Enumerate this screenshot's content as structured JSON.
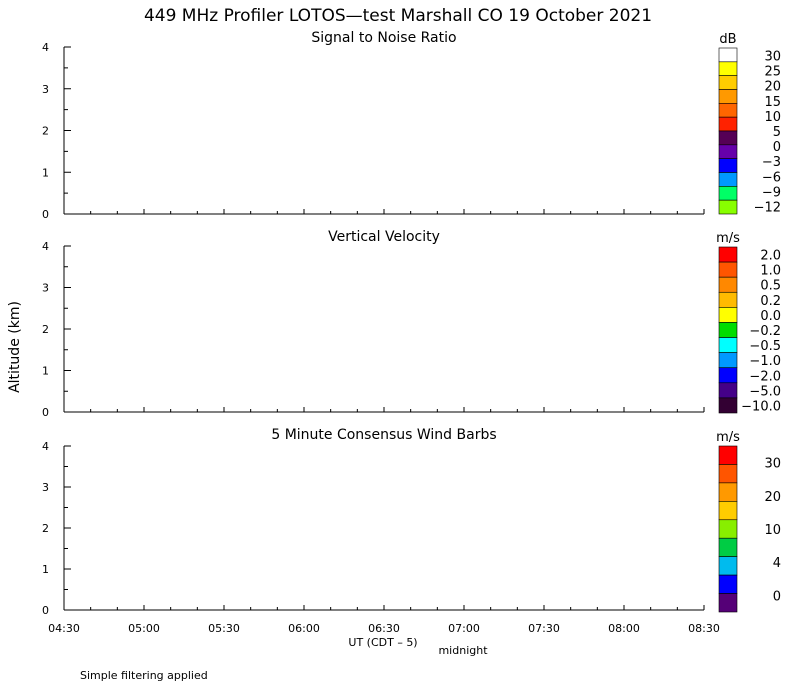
{
  "figure": {
    "title": "449 MHz Profiler LOTOS—test Marshall CO 19 October 2021",
    "ylabel": "Altitude (km)",
    "xlabel": "UT  (CDT – 5)",
    "midnight_label": "midnight",
    "footnote": "Simple filtering applied",
    "x_ticks": [
      "04:30",
      "05:00",
      "05:30",
      "06:00",
      "06:30",
      "07:00",
      "07:30",
      "08:00",
      "08:30"
    ]
  },
  "chart_data": [
    {
      "type": "heatmap",
      "title": "Signal to Noise Ratio",
      "ylabel": "Altitude (km)",
      "xlim": [
        "04:30",
        "08:30"
      ],
      "ylim": [
        0,
        4
      ],
      "y_ticks": [
        "0",
        "1",
        "2",
        "3",
        "4"
      ],
      "values": [],
      "colorbar": {
        "unit": "dB",
        "colors": [
          "#ffffff",
          "#ffff00",
          "#ffcc00",
          "#ff9900",
          "#ff6600",
          "#ff2200",
          "#550055",
          "#6600aa",
          "#0000ff",
          "#0099ff",
          "#00ff66",
          "#88ff00"
        ],
        "labels": [
          "30",
          "25",
          "20",
          "15",
          "10",
          "5",
          "0",
          "−3",
          "−6",
          "−9",
          "−12"
        ]
      }
    },
    {
      "type": "heatmap",
      "title": "Vertical Velocity",
      "ylabel": "Altitude (km)",
      "xlim": [
        "04:30",
        "08:30"
      ],
      "ylim": [
        0,
        4
      ],
      "y_ticks": [
        "0",
        "1",
        "2",
        "3",
        "4"
      ],
      "values": [],
      "colorbar": {
        "unit": "m/s",
        "colors": [
          "#ff0000",
          "#ff5500",
          "#ff8800",
          "#ffbb00",
          "#ffff00",
          "#00dd00",
          "#00ffff",
          "#0099ff",
          "#0000ff",
          "#440088",
          "#330033"
        ],
        "labels": [
          "2.0",
          "1.0",
          "0.5",
          "0.2",
          "0.0",
          "−0.2",
          "−0.5",
          "−1.0",
          "−2.0",
          "−5.0",
          "−10.0"
        ]
      }
    },
    {
      "type": "heatmap",
      "title": "5 Minute Consensus Wind Barbs",
      "ylabel": "Altitude (km)",
      "xlim": [
        "04:30",
        "08:30"
      ],
      "ylim": [
        0,
        4
      ],
      "y_ticks": [
        "0",
        "1",
        "2",
        "3",
        "4"
      ],
      "values": [],
      "colorbar": {
        "unit": "m/s",
        "colors": [
          "#ff0000",
          "#ff5500",
          "#ff9900",
          "#ffcc00",
          "#88ee00",
          "#00cc44",
          "#00bbee",
          "#0000ff",
          "#550077"
        ],
        "labels": [
          "30",
          "20",
          "10",
          "4",
          "0"
        ]
      }
    }
  ]
}
